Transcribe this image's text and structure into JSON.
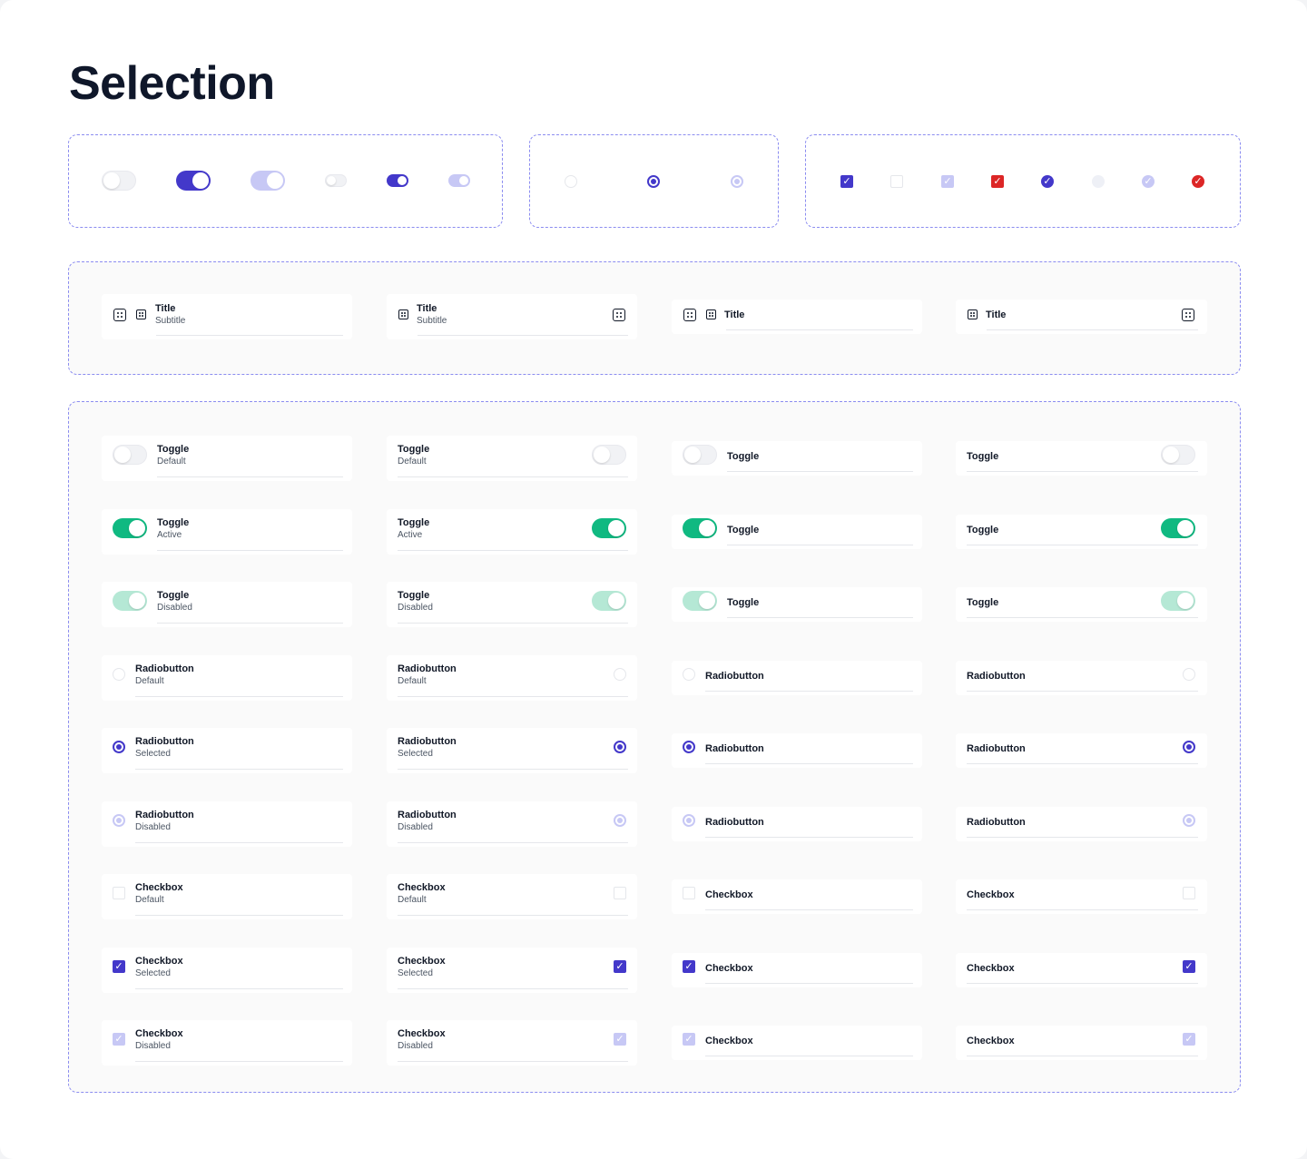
{
  "page_title": "Selection",
  "colors": {
    "accent": "#4338ca",
    "accent_disabled": "#c7c8f5",
    "success": "#10b981",
    "success_disabled": "#b5e8d5",
    "error": "#dc2626",
    "toggle_off": "#f1f2f5",
    "frame_border": "#8b8cf0"
  },
  "placeholder_icon": "placeholder-square-icon",
  "lists": {
    "top_cells": [
      {
        "title": "Title",
        "subtitle": "Subtitle"
      },
      {
        "title": "Title",
        "subtitle": "Subtitle"
      },
      {
        "title": "Title"
      },
      {
        "title": "Title"
      }
    ],
    "rows": [
      {
        "label": "Toggle",
        "state": "Default"
      },
      {
        "label": "Toggle",
        "state": "Active"
      },
      {
        "label": "Toggle",
        "state": "Disabled"
      },
      {
        "label": "Radiobutton",
        "state": "Default"
      },
      {
        "label": "Radiobutton",
        "state": "Selected"
      },
      {
        "label": "Radiobutton",
        "state": "Disabled"
      },
      {
        "label": "Checkbox",
        "state": "Default"
      },
      {
        "label": "Checkbox",
        "state": "Selected"
      },
      {
        "label": "Checkbox",
        "state": "Disabled"
      }
    ]
  }
}
